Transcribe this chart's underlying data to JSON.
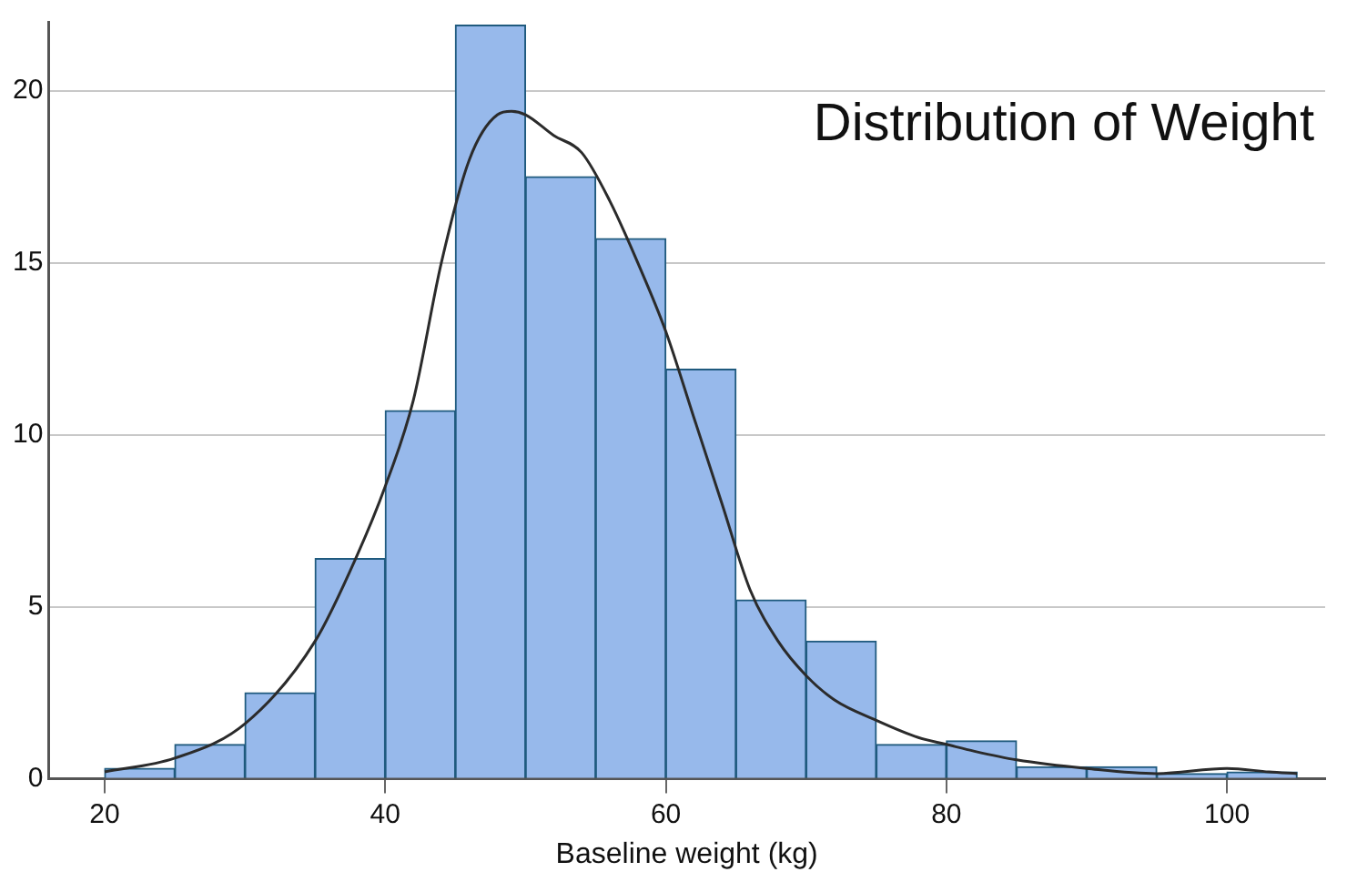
{
  "chart_data": {
    "type": "histogram",
    "title": "Distribution of Weight",
    "xlabel": "Baseline weight (kg)",
    "bins": [
      20,
      25,
      30,
      35,
      40,
      45,
      50,
      55,
      60,
      65,
      70,
      75,
      80,
      85,
      90,
      95,
      100,
      105
    ],
    "values": [
      0.3,
      1.0,
      2.5,
      6.4,
      10.7,
      21.9,
      17.5,
      15.7,
      11.9,
      5.2,
      4.0,
      1.0,
      1.1,
      0.35,
      0.35,
      0.15,
      0.2
    ],
    "color": "#97b9eb",
    "series": [
      {
        "type": "line",
        "color": "#2b2b2b",
        "x": [
          20,
          25,
          30,
          35,
          38,
          40,
          42,
          44,
          46,
          48,
          49,
          50,
          52,
          54,
          56,
          58,
          60,
          62,
          64,
          66,
          68,
          70,
          72,
          75,
          78,
          80,
          82,
          85,
          90,
          95,
          100,
          103,
          105
        ],
        "values": [
          0.2,
          0.6,
          1.6,
          4,
          6.5,
          8.5,
          11,
          15,
          18,
          19.3,
          19.4,
          19.3,
          18.7,
          18.2,
          16.8,
          15,
          13,
          10.5,
          8,
          5.5,
          4,
          3,
          2.3,
          1.7,
          1.2,
          1.0,
          0.8,
          0.55,
          0.3,
          0.15,
          0.3,
          0.2,
          0.15
        ]
      }
    ],
    "xlim": [
      16,
      107
    ],
    "xticks": [
      20,
      40,
      60,
      80,
      100
    ],
    "ylim": [
      0,
      22
    ],
    "yticks": [
      0,
      5,
      10,
      15,
      20
    ],
    "grid": "y",
    "legend": false
  }
}
